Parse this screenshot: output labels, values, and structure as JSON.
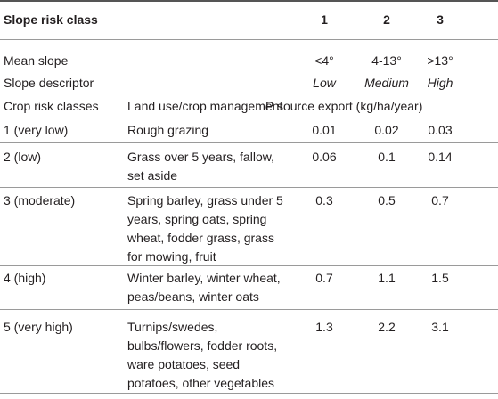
{
  "header": {
    "title": "Slope risk class",
    "columns": [
      "1",
      "2",
      "3"
    ]
  },
  "mean_slope": {
    "label": "Mean slope",
    "values": [
      "<4°",
      "4-13°",
      ">13°"
    ]
  },
  "slope_descriptor": {
    "label": "Slope descriptor",
    "values": [
      "Low",
      "Medium",
      "High"
    ]
  },
  "subheader": {
    "crop": "Crop risk classes",
    "land_use": "Land use/crop management",
    "export": "P source export (kg/ha/year)"
  },
  "rows": [
    {
      "class": "1 (very low)",
      "land_use": [
        "Rough grazing"
      ],
      "values": [
        0.01,
        0.02,
        0.03
      ]
    },
    {
      "class": "2 (low)",
      "land_use": [
        "Grass over 5 years, fallow,",
        "set aside"
      ],
      "values": [
        0.06,
        0.1,
        0.14
      ]
    },
    {
      "class": "3 (moderate)",
      "land_use": [
        "Spring barley, grass under 5",
        "years, spring oats, spring",
        "wheat, fodder grass, grass",
        "for mowing, fruit"
      ],
      "values": [
        0.3,
        0.5,
        0.7
      ]
    },
    {
      "class": "4 (high)",
      "land_use": [
        "Winter barley, winter wheat,",
        "peas/beans, winter oats"
      ],
      "values": [
        0.7,
        1.1,
        1.5
      ]
    },
    {
      "class": "5 (very high)",
      "land_use": [
        "Turnips/swedes,",
        "bulbs/flowers, fodder roots,",
        "ware potatoes, seed",
        "potatoes, other vegetables"
      ],
      "values": [
        1.3,
        2.2,
        3.1
      ]
    }
  ]
}
